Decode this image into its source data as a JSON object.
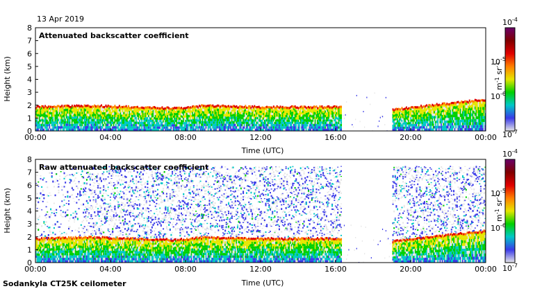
{
  "date": "13 Apr 2019",
  "footer": "Sodankyla CT25K ceilometer",
  "colorscale": {
    "stops": [
      "#e6e6e6",
      "#3a3ae8",
      "#00c8c8",
      "#00d000",
      "#e6e600",
      "#ff7f00",
      "#e00000",
      "#800000",
      "#6a006a"
    ],
    "top_label": {
      "base": "10",
      "exp": "-4"
    },
    "bottom_label": {
      "base": "10",
      "exp": "-7"
    },
    "tick_labels": [
      {
        "base": "10",
        "exp": "-5"
      },
      {
        "base": "10",
        "exp": "-6"
      }
    ],
    "unit": {
      "m": "m",
      "m_exp": "-1",
      "sr": "sr",
      "sr_exp": "-1"
    }
  },
  "chart_data": [
    {
      "type": "heatmap",
      "title": "Attenuated backscatter coefficient",
      "xlabel": "Time (UTC)",
      "ylabel": "Height (km)",
      "xlim": [
        0,
        24
      ],
      "ylim": [
        0,
        8
      ],
      "xtick_labels": [
        "00:00",
        "04:00",
        "08:00",
        "12:00",
        "16:00",
        "20:00",
        "00:00"
      ],
      "ytick_labels": [
        "0",
        "1",
        "2",
        "3",
        "4",
        "5",
        "6",
        "7",
        "8"
      ],
      "cloud_base_km": [
        [
          0,
          1.8
        ],
        [
          3,
          1.9
        ],
        [
          5,
          1.8
        ],
        [
          7.5,
          1.7
        ],
        [
          9,
          1.9
        ],
        [
          12,
          1.8
        ],
        [
          16,
          1.8
        ],
        [
          19,
          1.6
        ],
        [
          24,
          2.4
        ]
      ],
      "data_gap_hours": [
        [
          16.3,
          19.0
        ]
      ]
    },
    {
      "type": "heatmap",
      "title": "Raw attenuated backscatter coefficient",
      "xlabel": "Time (UTC)",
      "ylabel": "Height (km)",
      "xlim": [
        0,
        24
      ],
      "ylim": [
        0,
        8
      ],
      "xtick_labels": [
        "00:00",
        "04:00",
        "08:00",
        "12:00",
        "16:00",
        "20:00",
        "00:00"
      ],
      "ytick_labels": [
        "0",
        "1",
        "2",
        "3",
        "4",
        "5",
        "6",
        "7",
        "8"
      ],
      "cloud_base_km": [
        [
          0,
          1.8
        ],
        [
          3,
          1.9
        ],
        [
          5,
          1.8
        ],
        [
          7.5,
          1.7
        ],
        [
          9,
          1.9
        ],
        [
          12,
          1.8
        ],
        [
          16,
          1.8
        ],
        [
          19,
          1.6
        ],
        [
          24,
          2.4
        ]
      ],
      "data_gap_hours": [
        [
          16.3,
          19.0
        ]
      ]
    }
  ]
}
